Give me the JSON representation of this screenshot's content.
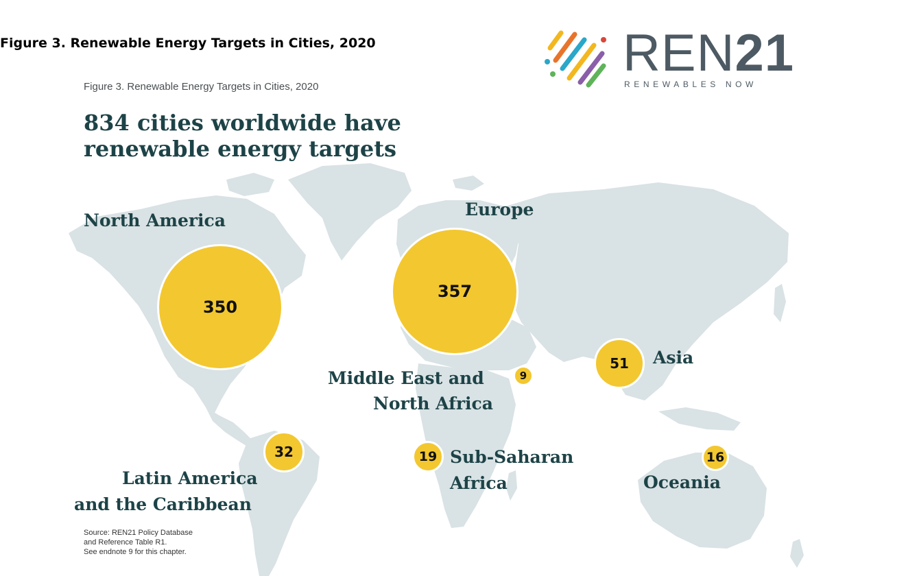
{
  "page_heading": "Figure 3. Renewable Energy Targets in Cities, 2020",
  "logo": {
    "name_part1": "REN",
    "name_part2": "21",
    "tagline": "RENEWABLES NOW",
    "colors": [
      "#f3b71f",
      "#e8742b",
      "#2aa7c9",
      "#5fb35a",
      "#8a5ea8",
      "#d9463a"
    ]
  },
  "figure_caption": "Figure 3.  Renewable Energy Targets in Cities, 2020",
  "headline_line1": "834 cities worldwide have",
  "headline_line2": "renewable energy targets",
  "regions": {
    "north_america": {
      "label": "North America",
      "value": "350"
    },
    "europe": {
      "label": "Europe",
      "value": "357"
    },
    "mena": {
      "label_line1": "Middle East and",
      "label_line2": "North Africa",
      "value": "9"
    },
    "asia": {
      "label": "Asia",
      "value": "51"
    },
    "latin_america": {
      "label_line1": "Latin America",
      "label_line2": "and the Caribbean",
      "value": "32"
    },
    "sub_saharan": {
      "label_line1": "Sub-Saharan",
      "label_line2": "Africa",
      "value": "19"
    },
    "oceania": {
      "label": "Oceania",
      "value": "16"
    }
  },
  "source_note": "Source: REN21 Policy Database\nand Reference Table R1.\nSee endnote 9 for this chapter.",
  "colors": {
    "land": "#d9e2e4",
    "bubble": "#f3c72f",
    "label_text": "#1d4347"
  }
}
